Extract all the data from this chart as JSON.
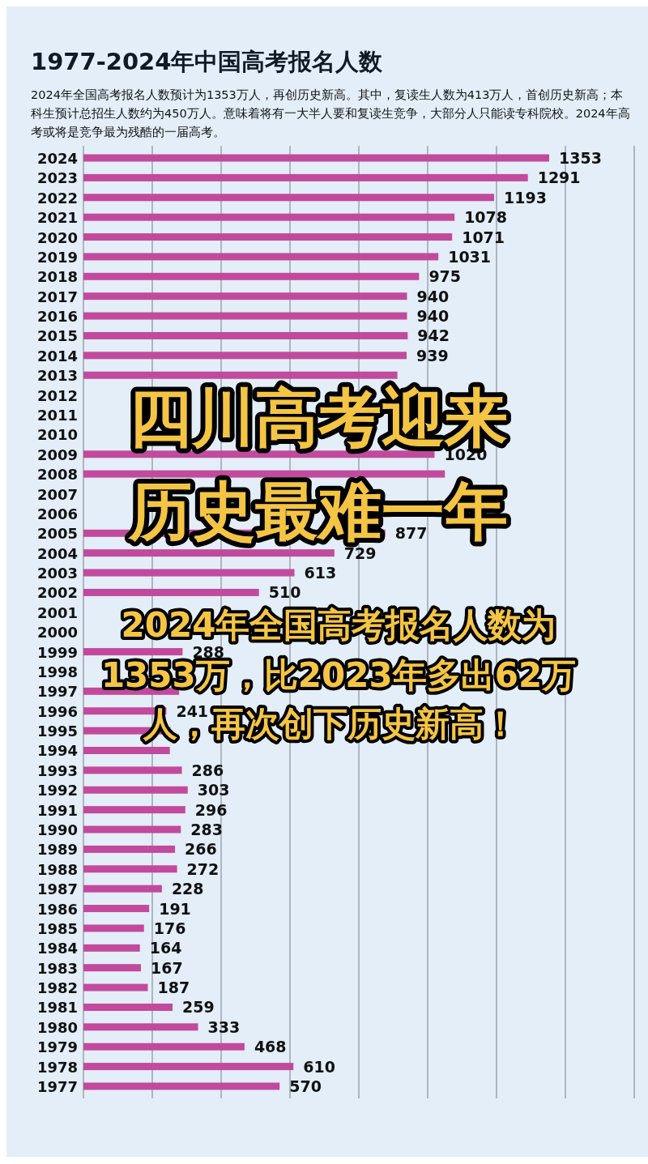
{
  "chart_data": {
    "type": "bar",
    "orientation": "horizontal",
    "title": "1977-2024年中国高考报名人数",
    "subtitle": "2024年全国高考报名人数预计为1353万人，再创历史新高。其中，复读生人数为413万人，首创历史新高；本科生预计总招生人数约为450万人。意味着将有一大半人要和复读生竞争，大部分人只能读专科院校。2024年高考或将是竞争最为残酷的一届高考。",
    "categories": [
      "2024",
      "2023",
      "2022",
      "2021",
      "2020",
      "2019",
      "2018",
      "2017",
      "2016",
      "2015",
      "2014",
      "2013",
      "2012",
      "2011",
      "2010",
      "2009",
      "2008",
      "2007",
      "2006",
      "2005",
      "2004",
      "2003",
      "2002",
      "2001",
      "2000",
      "1999",
      "1998",
      "1997",
      "1996",
      "1995",
      "1994",
      "1993",
      "1992",
      "1991",
      "1990",
      "1989",
      "1988",
      "1987",
      "1986",
      "1985",
      "1984",
      "1983",
      "1982",
      "1981",
      "1980",
      "1979",
      "1978",
      "1977"
    ],
    "series": [
      {
        "color": "#c24a9c",
        "values": [
          1353,
          1291,
          1193,
          1078,
          1071,
          1031,
          975,
          940,
          940,
          942,
          939,
          912,
          null,
          null,
          null,
          1020,
          1050,
          null,
          null,
          877,
          729,
          613,
          510,
          null,
          null,
          288,
          null,
          278,
          241,
          253,
          251,
          286,
          303,
          296,
          283,
          266,
          272,
          228,
          191,
          176,
          164,
          167,
          187,
          259,
          333,
          468,
          610,
          570
        ],
        "value_labels": [
          "1353",
          "1291",
          "1193",
          "1078",
          "1071",
          "1031",
          "975",
          "940",
          "940",
          "942",
          "939",
          null,
          null,
          null,
          null,
          "1020",
          null,
          null,
          null,
          "877",
          "729",
          "613",
          "510",
          null,
          null,
          "288",
          null,
          null,
          "241",
          null,
          null,
          "286",
          "303",
          "296",
          "283",
          "266",
          "272",
          "228",
          "191",
          "176",
          "164",
          "167",
          "187",
          "259",
          "333",
          "468",
          "610",
          "570"
        ]
      }
    ],
    "xlim": [
      0,
      1600
    ],
    "xticks": [
      {
        "value": 0,
        "label": null
      },
      {
        "value": 200,
        "label": null
      },
      {
        "value": 400,
        "label": null
      },
      {
        "value": 600,
        "label": null
      },
      {
        "value": 800,
        "label": null
      },
      {
        "value": 1000,
        "label": null
      },
      {
        "value": 1200,
        "label": null
      },
      {
        "value": 1400,
        "label": null
      },
      {
        "value": 1600,
        "label": null
      }
    ],
    "tick_labels": "y",
    "grid": "x",
    "annotations": [
      "四川高考迎来",
      "历史最难一年",
      "2024年全国高考报名人数为",
      "1353万，比2023年多出62万",
      "人，再次创下历史新高！"
    ]
  }
}
